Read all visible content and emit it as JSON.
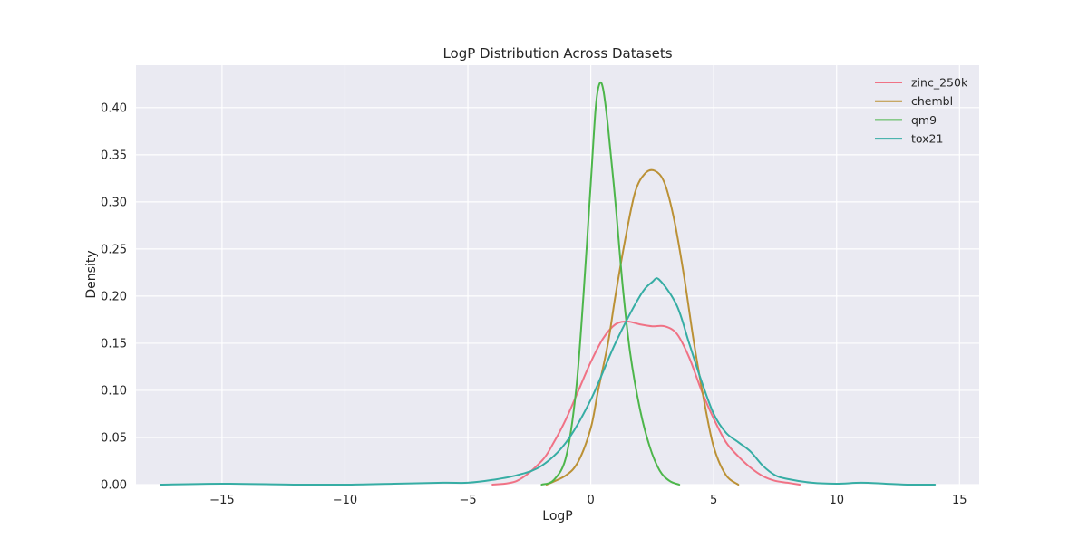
{
  "chart_data": {
    "type": "line",
    "title": "LogP Distribution Across Datasets",
    "xlabel": "LogP",
    "ylabel": "Density",
    "xlim": [
      -18.5,
      15.8
    ],
    "ylim": [
      0,
      0.445
    ],
    "xticks": [
      -15,
      -10,
      -5,
      0,
      5,
      10,
      15
    ],
    "xtick_labels": [
      "−15",
      "−10",
      "−5",
      "0",
      "5",
      "10",
      "15"
    ],
    "yticks": [
      0,
      0.05,
      0.1,
      0.15,
      0.2,
      0.25,
      0.3,
      0.35,
      0.4
    ],
    "ytick_labels": [
      "0.00",
      "0.05",
      "0.10",
      "0.15",
      "0.20",
      "0.25",
      "0.30",
      "0.35",
      "0.40"
    ],
    "grid": true,
    "legend_position": "top-right",
    "background": "#eaeaf2",
    "series": [
      {
        "name": "zinc_250k",
        "color": "#f07285",
        "x": [
          -4.0,
          -3.0,
          -2.0,
          -1.5,
          -1.0,
          -0.5,
          0.0,
          0.5,
          1.0,
          1.5,
          2.0,
          2.5,
          3.0,
          3.5,
          4.0,
          4.5,
          5.0,
          5.5,
          6.0,
          6.5,
          7.0,
          7.5,
          8.0,
          8.5
        ],
        "y": [
          0.0,
          0.004,
          0.025,
          0.045,
          0.07,
          0.1,
          0.13,
          0.155,
          0.17,
          0.173,
          0.17,
          0.168,
          0.168,
          0.16,
          0.135,
          0.1,
          0.07,
          0.045,
          0.03,
          0.018,
          0.009,
          0.004,
          0.002,
          0.0
        ]
      },
      {
        "name": "chembl",
        "color": "#bb9136",
        "x": [
          -1.8,
          -1.0,
          -0.5,
          0.0,
          0.3,
          0.7,
          1.0,
          1.4,
          1.8,
          2.2,
          2.6,
          3.0,
          3.4,
          3.8,
          4.2,
          4.6,
          5.0,
          5.5,
          6.0
        ],
        "y": [
          0.0,
          0.01,
          0.025,
          0.06,
          0.1,
          0.15,
          0.2,
          0.26,
          0.31,
          0.33,
          0.333,
          0.32,
          0.28,
          0.22,
          0.15,
          0.09,
          0.04,
          0.01,
          0.0
        ]
      },
      {
        "name": "qm9",
        "color": "#4db64b",
        "x": [
          -2.0,
          -1.5,
          -1.0,
          -0.6,
          -0.3,
          0.0,
          0.2,
          0.35,
          0.5,
          0.7,
          1.0,
          1.3,
          1.6,
          2.0,
          2.4,
          2.8,
          3.2,
          3.6
        ],
        "y": [
          0.0,
          0.005,
          0.03,
          0.1,
          0.2,
          0.32,
          0.4,
          0.425,
          0.42,
          0.38,
          0.3,
          0.21,
          0.14,
          0.08,
          0.04,
          0.015,
          0.004,
          0.0
        ]
      },
      {
        "name": "tox21",
        "color": "#36ada4",
        "x": [
          -17.5,
          -15.0,
          -12.0,
          -10.0,
          -8.0,
          -6.0,
          -5.0,
          -4.0,
          -3.0,
          -2.0,
          -1.0,
          0.0,
          1.0,
          2.0,
          2.5,
          2.8,
          3.5,
          4.0,
          4.5,
          5.0,
          5.5,
          6.0,
          6.5,
          7.0,
          7.5,
          8.0,
          9.0,
          10.0,
          11.0,
          12.0,
          13.0,
          14.0
        ],
        "y": [
          0.0,
          0.001,
          0.0,
          0.0,
          0.001,
          0.002,
          0.002,
          0.005,
          0.01,
          0.02,
          0.045,
          0.09,
          0.15,
          0.2,
          0.215,
          0.217,
          0.19,
          0.15,
          0.11,
          0.075,
          0.055,
          0.045,
          0.035,
          0.02,
          0.01,
          0.006,
          0.002,
          0.001,
          0.002,
          0.001,
          0.0,
          0.0
        ]
      }
    ]
  }
}
